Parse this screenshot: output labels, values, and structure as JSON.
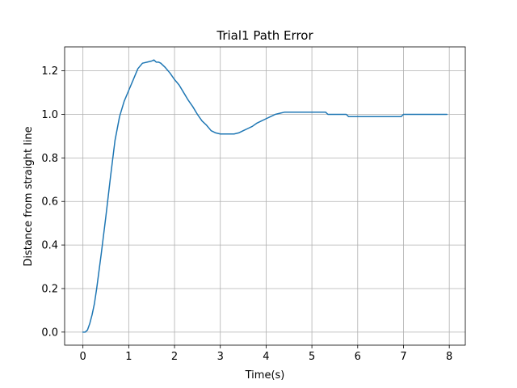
{
  "chart_data": {
    "type": "line",
    "title": "Trial1 Path Error",
    "xlabel": "Time(s)",
    "ylabel": "Distance from straight line",
    "xlim": [
      -0.4,
      8.35
    ],
    "ylim": [
      -0.06,
      1.31
    ],
    "xticks": [
      0,
      1,
      2,
      3,
      4,
      5,
      6,
      7,
      8
    ],
    "yticks": [
      0.0,
      0.2,
      0.4,
      0.6,
      0.8,
      1.0,
      1.2
    ],
    "xtick_labels": [
      "0",
      "1",
      "2",
      "3",
      "4",
      "5",
      "6",
      "7",
      "8"
    ],
    "ytick_labels": [
      "0.0",
      "0.2",
      "0.4",
      "0.6",
      "0.8",
      "1.0",
      "1.2"
    ],
    "grid": true,
    "series": [
      {
        "color": "#1f77b4",
        "x": [
          0.0,
          0.05,
          0.1,
          0.15,
          0.2,
          0.25,
          0.3,
          0.4,
          0.5,
          0.6,
          0.7,
          0.8,
          0.9,
          1.0,
          1.1,
          1.2,
          1.3,
          1.4,
          1.5,
          1.55,
          1.6,
          1.65,
          1.7,
          1.8,
          1.9,
          2.0,
          2.1,
          2.2,
          2.3,
          2.4,
          2.5,
          2.6,
          2.7,
          2.8,
          2.9,
          3.0,
          3.1,
          3.2,
          3.3,
          3.4,
          3.5,
          3.6,
          3.7,
          3.8,
          3.9,
          4.0,
          4.1,
          4.2,
          4.3,
          4.4,
          4.5,
          4.6,
          4.8,
          5.0,
          5.2,
          5.3,
          5.35,
          5.5,
          5.7,
          5.75,
          5.8,
          6.0,
          6.5,
          6.95,
          7.0,
          7.05,
          7.5,
          7.95
        ],
        "y": [
          0.0,
          0.0,
          0.01,
          0.04,
          0.08,
          0.13,
          0.2,
          0.36,
          0.53,
          0.71,
          0.88,
          0.99,
          1.06,
          1.11,
          1.16,
          1.21,
          1.235,
          1.24,
          1.245,
          1.25,
          1.24,
          1.24,
          1.235,
          1.215,
          1.19,
          1.16,
          1.135,
          1.1,
          1.065,
          1.035,
          1.0,
          0.97,
          0.95,
          0.925,
          0.915,
          0.91,
          0.91,
          0.91,
          0.91,
          0.915,
          0.925,
          0.935,
          0.945,
          0.96,
          0.97,
          0.98,
          0.99,
          1.0,
          1.005,
          1.01,
          1.01,
          1.01,
          1.01,
          1.01,
          1.01,
          1.01,
          1.0,
          1.0,
          1.0,
          1.0,
          0.99,
          0.99,
          0.99,
          0.99,
          1.0,
          1.0,
          1.0,
          1.0
        ]
      }
    ]
  }
}
